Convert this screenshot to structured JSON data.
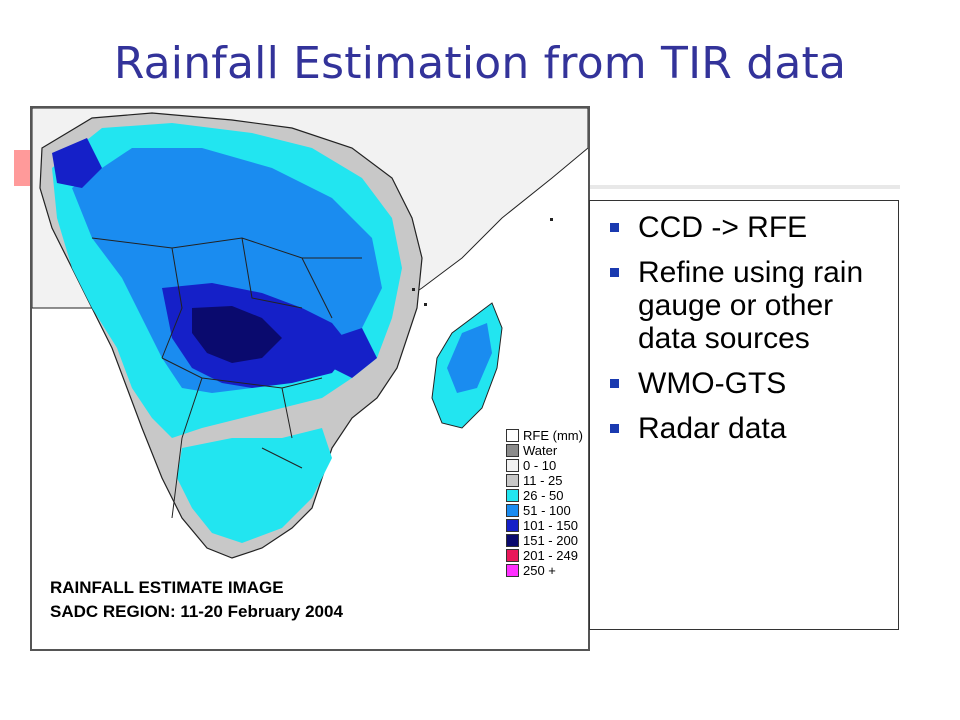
{
  "slide": {
    "title": "Rainfall Estimation from TIR data",
    "accent_color": "#ff9a9a",
    "title_color": "#33339a",
    "bullet_color": "#1a3ab0"
  },
  "bullets": [
    {
      "text": "CCD -> RFE"
    },
    {
      "text": "Refine using rain gauge or other data sources"
    },
    {
      "text": "WMO-GTS"
    },
    {
      "text": "Radar data"
    }
  ],
  "map": {
    "caption_line1": "RAINFALL ESTIMATE IMAGE",
    "caption_line2": "SADC REGION: 11-20 February 2004",
    "legend": [
      {
        "label": "RFE (mm)",
        "color": "#ffffff"
      },
      {
        "label": "Water",
        "color": "#8c8c8c"
      },
      {
        "label": "0 - 10",
        "color": "#f2f2f2"
      },
      {
        "label": "11 - 25",
        "color": "#c8c8c8"
      },
      {
        "label": "26 - 50",
        "color": "#22e5f0"
      },
      {
        "label": "51 - 100",
        "color": "#1a8cf0"
      },
      {
        "label": "101 - 150",
        "color": "#1520c8"
      },
      {
        "label": "151 - 200",
        "color": "#0a0a6e"
      },
      {
        "label": "201 - 249",
        "color": "#e8185a"
      },
      {
        "label": "250 +",
        "color": "#ff30ff"
      }
    ]
  }
}
